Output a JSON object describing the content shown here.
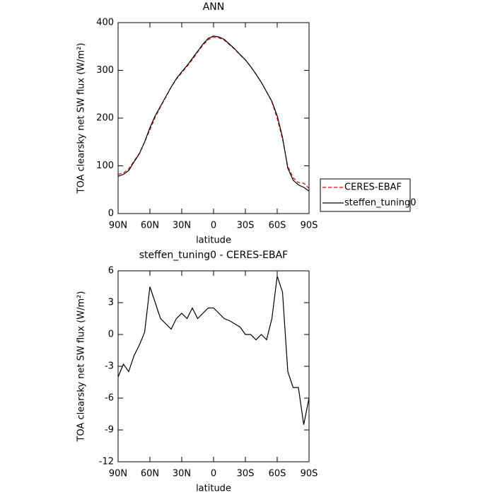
{
  "chart_data": [
    {
      "type": "line",
      "title": "ANN",
      "xlabel": "latitude",
      "ylabel": "TOA clearsky net SW flux (W/m²)",
      "x": [
        90,
        85,
        80,
        75,
        70,
        65,
        60,
        55,
        50,
        45,
        40,
        35,
        30,
        25,
        20,
        15,
        10,
        5,
        0,
        -5,
        -10,
        -15,
        -20,
        -25,
        -30,
        -35,
        -40,
        -45,
        -50,
        -55,
        -60,
        -65,
        -70,
        -75,
        -80,
        -85,
        -90
      ],
      "xlim": [
        90,
        -90
      ],
      "xticks": [
        {
          "value": 90,
          "label": "90N"
        },
        {
          "value": 60,
          "label": "60N"
        },
        {
          "value": 30,
          "label": "30N"
        },
        0,
        {
          "value": -30,
          "label": "30S"
        },
        {
          "value": -60,
          "label": "60S"
        },
        {
          "value": -90,
          "label": "90S"
        }
      ],
      "ylim": [
        0,
        400
      ],
      "yticks": [
        0,
        100,
        200,
        300,
        400
      ],
      "legend": "right",
      "series": [
        {
          "name": "CERES-EBAF",
          "color": "#e00000",
          "dashed": true,
          "values": [
            82,
            85,
            93.5,
            110,
            126,
            150,
            175.5,
            202,
            223.5,
            244,
            264.5,
            281.5,
            295,
            308.5,
            322.5,
            338.5,
            353,
            364.5,
            369.5,
            368,
            363.5,
            353.7,
            344,
            332.3,
            322,
            308,
            292.5,
            275,
            255.5,
            233.5,
            199.5,
            156,
            98.5,
            75,
            65,
            63.5,
            53
          ]
        },
        {
          "name": "steffen_tuning0",
          "color": "#000000",
          "dashed": false,
          "values": [
            78,
            82,
            90,
            108,
            125,
            150,
            180,
            205,
            225,
            245,
            265,
            283,
            297,
            310,
            325,
            340,
            355,
            367,
            372,
            370,
            365,
            355,
            345,
            333,
            322,
            308,
            292,
            275,
            255,
            235,
            205,
            160,
            95,
            70,
            60,
            55,
            47
          ]
        }
      ]
    },
    {
      "type": "line",
      "title": "steffen_tuning0 - CERES-EBAF",
      "xlabel": "latitude",
      "ylabel": "TOA clearsky net SW flux (W/m²)",
      "x": [
        90,
        85,
        80,
        75,
        70,
        65,
        60,
        55,
        50,
        45,
        40,
        35,
        30,
        25,
        20,
        15,
        10,
        5,
        0,
        -5,
        -10,
        -15,
        -20,
        -25,
        -30,
        -35,
        -40,
        -45,
        -50,
        -55,
        -60,
        -65,
        -70,
        -75,
        -80,
        -85,
        -90
      ],
      "xlim": [
        90,
        -90
      ],
      "xticks": [
        {
          "value": 90,
          "label": "90N"
        },
        {
          "value": 60,
          "label": "60N"
        },
        {
          "value": 30,
          "label": "30N"
        },
        0,
        {
          "value": -30,
          "label": "30S"
        },
        {
          "value": -60,
          "label": "60S"
        },
        {
          "value": -90,
          "label": "90S"
        }
      ],
      "ylim": [
        -12,
        6
      ],
      "yticks": [
        -12,
        -9,
        -6,
        -3,
        0,
        3,
        6
      ],
      "series": [
        {
          "color": "#000000",
          "dashed": false,
          "values": [
            -4,
            -2.8,
            -3.5,
            -2,
            -1,
            0.2,
            4.5,
            3,
            1.5,
            1,
            0.5,
            1.5,
            2,
            1.5,
            2.5,
            1.5,
            2,
            2.5,
            2.5,
            2,
            1.5,
            1.3,
            1,
            0.7,
            0,
            0,
            -0.5,
            0,
            -0.5,
            1.5,
            5.5,
            4,
            -3.5,
            -5,
            -5,
            -8.5,
            -6
          ]
        }
      ]
    }
  ]
}
